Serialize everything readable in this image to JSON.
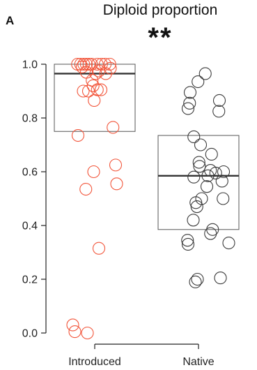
{
  "panel_label": "A",
  "chart_data": {
    "type": "scatter",
    "title": "Diploid proportion",
    "annotation": "**",
    "xlabel": "",
    "ylabel": "",
    "categories": [
      "Introduced",
      "Native"
    ],
    "ylim": [
      -0.03,
      1.05
    ],
    "y_ticks": [
      0.0,
      0.2,
      0.4,
      0.6,
      0.8,
      1.0
    ],
    "y_tick_labels": [
      "0.0",
      "0.2",
      "0.4",
      "0.6",
      "0.8",
      "1.0"
    ],
    "grid": false,
    "boxes": [
      {
        "category": "Introduced",
        "q1": 0.75,
        "median": 0.965,
        "q3": 1.0
      },
      {
        "category": "Native",
        "q1": 0.385,
        "median": 0.585,
        "q3": 0.735
      }
    ],
    "series": [
      {
        "category": "Introduced",
        "color": "#f2553a",
        "points": [
          {
            "jx": -0.33,
            "y": 1.0
          },
          {
            "jx": -0.27,
            "y": 1.0
          },
          {
            "jx": -0.21,
            "y": 1.0
          },
          {
            "jx": -0.16,
            "y": 1.0
          },
          {
            "jx": -0.11,
            "y": 1.0
          },
          {
            "jx": -0.06,
            "y": 1.0
          },
          {
            "jx": 0.05,
            "y": 1.0
          },
          {
            "jx": 0.13,
            "y": 1.0
          },
          {
            "jx": 0.2,
            "y": 1.0
          },
          {
            "jx": 0.29,
            "y": 1.0
          },
          {
            "jx": 0.3,
            "y": 0.985
          },
          {
            "jx": -0.24,
            "y": 0.99
          },
          {
            "jx": 0.08,
            "y": 0.975
          },
          {
            "jx": 0.02,
            "y": 0.965
          },
          {
            "jx": -0.16,
            "y": 0.97
          },
          {
            "jx": 0.21,
            "y": 0.965
          },
          {
            "jx": -0.05,
            "y": 0.94
          },
          {
            "jx": -0.03,
            "y": 0.92
          },
          {
            "jx": -0.22,
            "y": 0.9
          },
          {
            "jx": -0.12,
            "y": 0.9
          },
          {
            "jx": 0.05,
            "y": 0.905
          },
          {
            "jx": 0.12,
            "y": 0.905
          },
          {
            "jx": -0.01,
            "y": 0.865
          },
          {
            "jx": 0.35,
            "y": 0.765
          },
          {
            "jx": -0.32,
            "y": 0.735
          },
          {
            "jx": 0.4,
            "y": 0.625
          },
          {
            "jx": -0.02,
            "y": 0.6
          },
          {
            "jx": 0.42,
            "y": 0.555
          },
          {
            "jx": -0.17,
            "y": 0.535
          },
          {
            "jx": 0.08,
            "y": 0.315
          },
          {
            "jx": -0.42,
            "y": 0.03
          },
          {
            "jx": -0.38,
            "y": 0.005
          },
          {
            "jx": -0.14,
            "y": 0.0
          }
        ]
      },
      {
        "category": "Native",
        "color": "#3a3a3a",
        "points": [
          {
            "jx": 0.13,
            "y": 0.965
          },
          {
            "jx": -0.01,
            "y": 0.935
          },
          {
            "jx": -0.16,
            "y": 0.895
          },
          {
            "jx": 0.4,
            "y": 0.865
          },
          {
            "jx": -0.17,
            "y": 0.855
          },
          {
            "jx": -0.2,
            "y": 0.835
          },
          {
            "jx": 0.39,
            "y": 0.825
          },
          {
            "jx": -0.09,
            "y": 0.73
          },
          {
            "jx": 0.04,
            "y": 0.7
          },
          {
            "jx": 0.25,
            "y": 0.665
          },
          {
            "jx": 0.01,
            "y": 0.635
          },
          {
            "jx": 0.02,
            "y": 0.62
          },
          {
            "jx": 0.23,
            "y": 0.605
          },
          {
            "jx": 0.48,
            "y": 0.6
          },
          {
            "jx": 0.33,
            "y": 0.595
          },
          {
            "jx": 0.18,
            "y": 0.585
          },
          {
            "jx": -0.09,
            "y": 0.58
          },
          {
            "jx": 0.45,
            "y": 0.565
          },
          {
            "jx": 0.16,
            "y": 0.545
          },
          {
            "jx": 0.06,
            "y": 0.5
          },
          {
            "jx": 0.47,
            "y": 0.5
          },
          {
            "jx": -0.05,
            "y": 0.485
          },
          {
            "jx": -0.03,
            "y": 0.47
          },
          {
            "jx": -0.1,
            "y": 0.42
          },
          {
            "jx": 0.27,
            "y": 0.385
          },
          {
            "jx": 0.23,
            "y": 0.37
          },
          {
            "jx": -0.21,
            "y": 0.345
          },
          {
            "jx": -0.2,
            "y": 0.33
          },
          {
            "jx": 0.58,
            "y": 0.335
          },
          {
            "jx": -0.02,
            "y": 0.2
          },
          {
            "jx": -0.06,
            "y": 0.19
          },
          {
            "jx": 0.42,
            "y": 0.205
          }
        ]
      }
    ]
  }
}
